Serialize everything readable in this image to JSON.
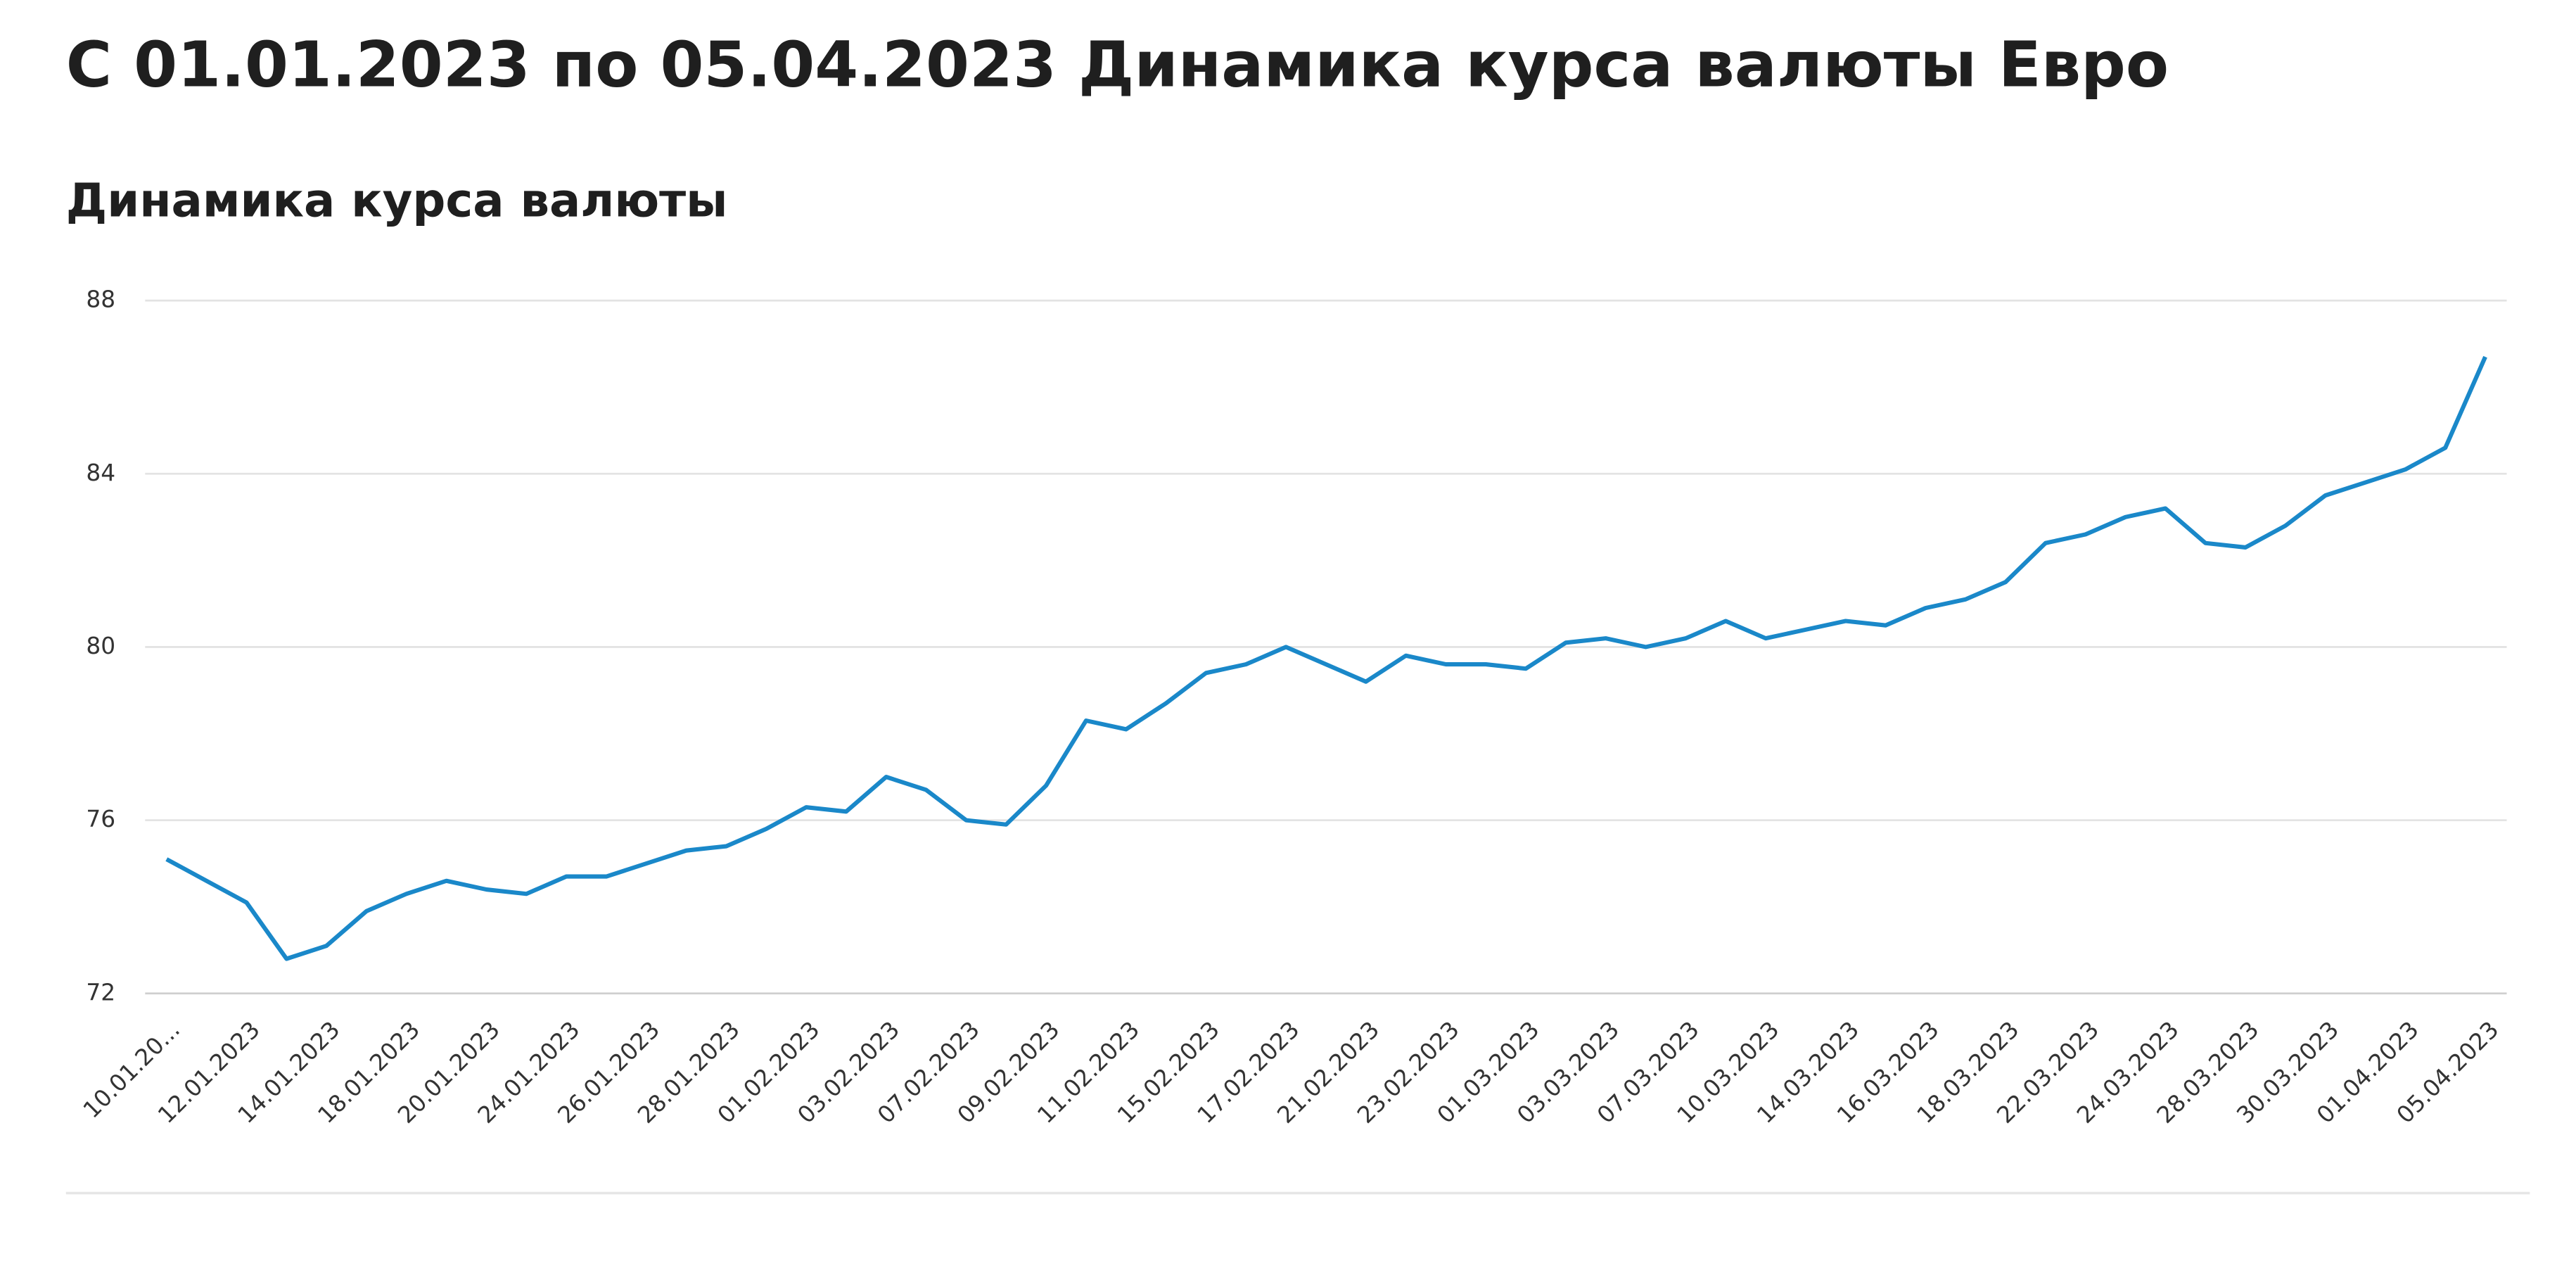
{
  "chart_data": {
    "type": "line",
    "title": "С 01.01.2023 по 05.04.2023 Динамика курса валюты Евро",
    "subtitle": "Динамика курса валюты",
    "categories": [
      "10.01.20...",
      null,
      "12.01.2023",
      null,
      "14.01.2023",
      null,
      "18.01.2023",
      null,
      "20.01.2023",
      null,
      "24.01.2023",
      null,
      "26.01.2023",
      null,
      "28.01.2023",
      null,
      "01.02.2023",
      null,
      "03.02.2023",
      null,
      "07.02.2023",
      null,
      "09.02.2023",
      null,
      "11.02.2023",
      null,
      "15.02.2023",
      null,
      "17.02.2023",
      null,
      "21.02.2023",
      null,
      "23.02.2023",
      null,
      "01.03.2023",
      null,
      "03.03.2023",
      null,
      "07.03.2023",
      null,
      "10.03.2023",
      null,
      "14.03.2023",
      null,
      "16.03.2023",
      null,
      "18.03.2023",
      null,
      "22.03.2023",
      null,
      "24.03.2023",
      null,
      "28.03.2023",
      null,
      "30.03.2023",
      null,
      "01.04.2023",
      null,
      "05.04.2023"
    ],
    "values": [
      75.1,
      74.6,
      74.1,
      72.8,
      73.1,
      73.9,
      74.3,
      74.6,
      74.4,
      74.3,
      74.7,
      74.7,
      75.0,
      75.3,
      75.4,
      75.8,
      76.3,
      76.2,
      77.0,
      76.7,
      76.0,
      75.9,
      76.8,
      78.3,
      78.1,
      78.7,
      79.4,
      79.6,
      80.0,
      79.6,
      79.2,
      79.8,
      79.6,
      79.6,
      79.5,
      80.1,
      80.2,
      80.0,
      80.2,
      80.6,
      80.2,
      80.4,
      80.6,
      80.5,
      80.9,
      81.1,
      81.5,
      82.4,
      82.6,
      83.0,
      83.2,
      82.4,
      82.3,
      82.8,
      83.5,
      83.8,
      84.1,
      84.6,
      86.7
    ],
    "color": "#1a88c9",
    "ylim": [
      72,
      88
    ],
    "yticks": [
      72,
      76,
      80,
      84,
      88
    ],
    "grid": true
  }
}
